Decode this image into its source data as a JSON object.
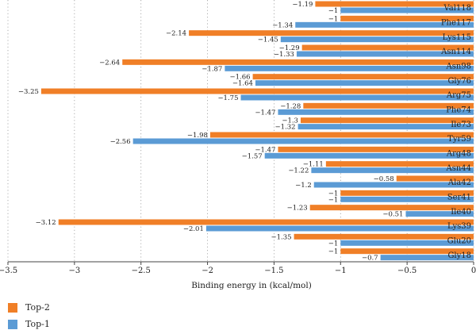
{
  "chart_data": {
    "type": "bar",
    "orientation": "horizontal",
    "xlabel": "Binding energy in (kcal/mol)",
    "xlim": [
      -3.5,
      0
    ],
    "xticks": [
      -3.5,
      -3,
      -2.5,
      -2,
      -1.5,
      -1,
      -0.5,
      0
    ],
    "xtick_labels": [
      "−3.5",
      "−3",
      "−2.5",
      "−2",
      "−1.5",
      "−1",
      "−0.5",
      "0"
    ],
    "grid": "vertical-dotted",
    "legend_position": "bottom-left",
    "categories": [
      "Val118",
      "Phe117",
      "Lys115",
      "Asn114",
      "Asn98",
      "Gly76",
      "Arg75",
      "Phe74",
      "Ile73",
      "Tyr59",
      "Arg48",
      "Asn44",
      "Ala42",
      "Ser41",
      "Ile40",
      "Lys39",
      "Glu20",
      "Gly18"
    ],
    "series": [
      {
        "name": "Top-2",
        "color": "#f07f27",
        "values": [
          -1.19,
          -1,
          -2.14,
          -1.29,
          -2.64,
          -1.66,
          -3.25,
          -1.28,
          -1.3,
          -1.98,
          -1.47,
          -1.11,
          -0.58,
          -1,
          -1.23,
          -3.12,
          -1.35,
          -1
        ],
        "labels": [
          "−1.19",
          "−1",
          "−2.14",
          "−1.29",
          "−2.64",
          "−1.66",
          "−3.25",
          "−1.28",
          "−1.3",
          "−1.98",
          "−1.47",
          "−1.11",
          "−0.58",
          "−1",
          "−1.23",
          "−3.12",
          "−1.35",
          "−1"
        ]
      },
      {
        "name": "Top-1",
        "color": "#5b9bd5",
        "values": [
          -1,
          -1.34,
          -1.45,
          -1.33,
          -1.87,
          -1.64,
          -1.75,
          -1.47,
          -1.32,
          -2.56,
          -1.57,
          -1.22,
          -1.2,
          -1,
          -0.51,
          -2.01,
          -1,
          -0.7
        ],
        "labels": [
          "−1",
          "−1.34",
          "−1.45",
          "−1.33",
          "−1.87",
          "−1.64",
          "−1.75",
          "−1.47",
          "−1.32",
          "−2.56",
          "−1.57",
          "−1.22",
          "−1.2",
          "−1",
          "−0.51",
          "−2.01",
          "−1",
          "−0.7"
        ]
      }
    ]
  },
  "legend": {
    "items": [
      {
        "label": "Top-2",
        "color": "#f07f27"
      },
      {
        "label": "Top-1",
        "color": "#5b9bd5"
      }
    ]
  }
}
